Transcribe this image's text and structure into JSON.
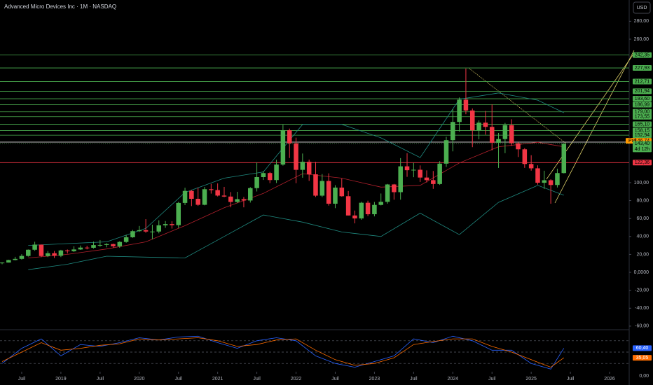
{
  "chart_data": {
    "type": "candlestick",
    "title": "Advanced Micro Devices Inc · 1M · NASDAQ",
    "currency": "USD",
    "up_color": "#4caf50",
    "down_color": "#f23645",
    "xlim": [
      "2018-04",
      "2026-04"
    ],
    "ylim": [
      -63.2,
      303.7
    ],
    "xticks": [
      {
        "value": "2018-07",
        "label": "Juil"
      },
      {
        "value": "2019-01",
        "label": "2019"
      },
      {
        "value": "2019-07",
        "label": "Juil"
      },
      {
        "value": "2020-01",
        "label": "2020"
      },
      {
        "value": "2020-07",
        "label": "Juil"
      },
      {
        "value": "2021-01",
        "label": "2021"
      },
      {
        "value": "2021-07",
        "label": "Juil"
      },
      {
        "value": "2022-01",
        "label": "2022"
      },
      {
        "value": "2022-07",
        "label": "Juil"
      },
      {
        "value": "2023-01",
        "label": "2023"
      },
      {
        "value": "2023-07",
        "label": "Juil"
      },
      {
        "value": "2024-01",
        "label": "2024"
      },
      {
        "value": "2024-07",
        "label": "Juil"
      },
      {
        "value": "2025-01",
        "label": "2025"
      },
      {
        "value": "2025-07",
        "label": "Juil"
      },
      {
        "value": "2026-01",
        "label": "2026"
      }
    ],
    "yticks": [
      {
        "value": 280,
        "label": "280,00"
      },
      {
        "value": 260,
        "label": "260,00"
      },
      {
        "value": 100,
        "label": "100,00"
      },
      {
        "value": 80,
        "label": "80,00"
      },
      {
        "value": 60,
        "label": "60,00"
      },
      {
        "value": 40,
        "label": "40,00"
      },
      {
        "value": 20,
        "label": "20,00"
      },
      {
        "value": 0,
        "label": "0,0000"
      },
      {
        "value": -20,
        "label": "-20,00"
      },
      {
        "value": -40,
        "label": "-40,00"
      },
      {
        "value": -60,
        "label": "-60,00"
      }
    ],
    "candles": [
      [
        "2018-04",
        10.1,
        11.3,
        9.0,
        10.9
      ],
      [
        "2018-05",
        10.9,
        14.0,
        10.9,
        13.7
      ],
      [
        "2018-06",
        13.7,
        17.3,
        13.3,
        15.0
      ],
      [
        "2018-07",
        15.0,
        20.2,
        14.2,
        18.3
      ],
      [
        "2018-08",
        18.3,
        25.5,
        17.5,
        25.2
      ],
      [
        "2018-09",
        25.2,
        34.1,
        24.0,
        30.9
      ],
      [
        "2018-10",
        30.9,
        31.0,
        16.9,
        18.2
      ],
      [
        "2018-11",
        18.2,
        23.8,
        17.0,
        21.3
      ],
      [
        "2018-12",
        21.3,
        23.8,
        16.0,
        18.5
      ],
      [
        "2019-01",
        18.5,
        25.1,
        17.0,
        24.4
      ],
      [
        "2019-02",
        24.4,
        25.5,
        21.0,
        23.5
      ],
      [
        "2019-03",
        23.5,
        29.0,
        22.7,
        25.5
      ],
      [
        "2019-04",
        25.5,
        29.9,
        25.0,
        27.6
      ],
      [
        "2019-05",
        27.6,
        29.5,
        25.6,
        27.4
      ],
      [
        "2019-06",
        27.4,
        34.3,
        26.5,
        30.4
      ],
      [
        "2019-07",
        30.4,
        36.0,
        28.5,
        30.5
      ],
      [
        "2019-08",
        30.5,
        32.5,
        27.9,
        31.5
      ],
      [
        "2019-09",
        31.5,
        32.0,
        27.5,
        29.0
      ],
      [
        "2019-10",
        29.0,
        34.7,
        27.4,
        33.9
      ],
      [
        "2019-11",
        33.9,
        41.8,
        33.0,
        39.1
      ],
      [
        "2019-12",
        39.1,
        47.3,
        38.5,
        45.9
      ],
      [
        "2020-01",
        45.9,
        51.7,
        45.1,
        47.0
      ],
      [
        "2020-02",
        47.0,
        59.3,
        44.1,
        45.5
      ],
      [
        "2020-03",
        45.5,
        53.1,
        36.8,
        45.5
      ],
      [
        "2020-04",
        45.5,
        58.0,
        43.5,
        52.4
      ],
      [
        "2020-05",
        52.4,
        57.2,
        49.6,
        53.8
      ],
      [
        "2020-06",
        53.8,
        56.9,
        48.8,
        52.6
      ],
      [
        "2020-07",
        52.6,
        78.6,
        49.5,
        77.4
      ],
      [
        "2020-08",
        77.4,
        94.3,
        75.0,
        90.8
      ],
      [
        "2020-09",
        90.8,
        92.0,
        73.9,
        82.0
      ],
      [
        "2020-10",
        82.0,
        94.3,
        74.1,
        75.3
      ],
      [
        "2020-11",
        75.3,
        95.2,
        74.7,
        92.7
      ],
      [
        "2020-12",
        92.7,
        98.6,
        87.8,
        91.7
      ],
      [
        "2021-01",
        91.7,
        99.2,
        84.6,
        85.6
      ],
      [
        "2021-02",
        85.6,
        95.3,
        83.8,
        84.5
      ],
      [
        "2021-03",
        84.5,
        89.5,
        72.5,
        78.5
      ],
      [
        "2021-04",
        78.5,
        89.8,
        77.4,
        81.6
      ],
      [
        "2021-05",
        81.6,
        84.0,
        72.5,
        80.1
      ],
      [
        "2021-06",
        80.1,
        95.0,
        77.8,
        93.9
      ],
      [
        "2021-07",
        93.9,
        122.5,
        90.2,
        106.2
      ],
      [
        "2021-08",
        106.2,
        112.8,
        103.0,
        110.7
      ],
      [
        "2021-09",
        110.7,
        111.9,
        99.5,
        102.9
      ],
      [
        "2021-10",
        102.9,
        125.6,
        99.6,
        120.2
      ],
      [
        "2021-11",
        120.2,
        164.5,
        119.0,
        158.4
      ],
      [
        "2021-12",
        158.4,
        160.3,
        127.5,
        143.9
      ],
      [
        "2022-01",
        143.9,
        150.2,
        99.4,
        114.3
      ],
      [
        "2022-02",
        114.3,
        132.5,
        105.5,
        123.3
      ],
      [
        "2022-03",
        123.3,
        125.7,
        102.0,
        109.3
      ],
      [
        "2022-04",
        109.3,
        123.3,
        84.0,
        85.5
      ],
      [
        "2022-05",
        85.5,
        109.6,
        84.0,
        101.9
      ],
      [
        "2022-06",
        101.9,
        110.4,
        74.4,
        76.5
      ],
      [
        "2022-07",
        76.5,
        97.2,
        71.6,
        94.5
      ],
      [
        "2022-08",
        94.5,
        104.6,
        84.4,
        84.9
      ],
      [
        "2022-09",
        84.9,
        90.7,
        63.4,
        63.4
      ],
      [
        "2022-10",
        63.4,
        68.9,
        54.6,
        60.1
      ],
      [
        "2022-11",
        60.1,
        78.7,
        58.6,
        77.6
      ],
      [
        "2022-12",
        77.6,
        79.9,
        62.8,
        64.8
      ],
      [
        "2023-01",
        64.8,
        78.5,
        62.4,
        75.2
      ],
      [
        "2023-02",
        75.2,
        87.9,
        74.6,
        78.6
      ],
      [
        "2023-03",
        78.6,
        98.6,
        76.5,
        98.0
      ],
      [
        "2023-04",
        98.0,
        98.6,
        81.0,
        89.4
      ],
      [
        "2023-05",
        89.4,
        127.4,
        81.0,
        118.2
      ],
      [
        "2023-06",
        118.2,
        132.8,
        106.5,
        113.9
      ],
      [
        "2023-07",
        113.9,
        122.1,
        106.1,
        114.4
      ],
      [
        "2023-08",
        114.4,
        119.2,
        100.8,
        105.7
      ],
      [
        "2023-09",
        105.7,
        113.7,
        100.2,
        102.8
      ],
      [
        "2023-10",
        102.8,
        113.0,
        93.1,
        98.5
      ],
      [
        "2023-11",
        98.5,
        124.0,
        97.5,
        121.2
      ],
      [
        "2023-12",
        121.2,
        151.1,
        117.6,
        147.4
      ],
      [
        "2024-01",
        147.4,
        181.9,
        134.9,
        167.7
      ],
      [
        "2024-02",
        167.7,
        195.0,
        157.0,
        192.5
      ],
      [
        "2024-03",
        192.5,
        227.3,
        176.3,
        180.5
      ],
      [
        "2024-04",
        180.5,
        182.7,
        139.6,
        158.4
      ],
      [
        "2024-05",
        158.4,
        169.4,
        148.3,
        166.9
      ],
      [
        "2024-06",
        166.9,
        180.0,
        153.5,
        162.2
      ],
      [
        "2024-07",
        162.2,
        187.3,
        136.1,
        144.5
      ],
      [
        "2024-08",
        144.5,
        155.4,
        116.4,
        148.6
      ],
      [
        "2024-09",
        148.6,
        166.6,
        132.9,
        164.1
      ],
      [
        "2024-10",
        164.1,
        170.7,
        141.0,
        144.0
      ],
      [
        "2024-11",
        144.0,
        145.0,
        128.6,
        137.2
      ],
      [
        "2024-12",
        137.2,
        138.5,
        116.5,
        120.8
      ],
      [
        "2025-01",
        120.8,
        130.6,
        113.4,
        116.0
      ],
      [
        "2025-02",
        116.0,
        119.3,
        97.8,
        99.9
      ],
      [
        "2025-03",
        99.9,
        113.3,
        93.0,
        102.7
      ],
      [
        "2025-04",
        102.7,
        103.8,
        76.5,
        97.4
      ],
      [
        "2025-05",
        97.4,
        115.6,
        94.6,
        110.7
      ],
      [
        "2025-06",
        110.7,
        144.0,
        110.3,
        143.4
      ]
    ],
    "bands": {
      "x": [
        "2018-08",
        "2019-02",
        "2019-08",
        "2020-02",
        "2020-08",
        "2021-02",
        "2021-08",
        "2022-02",
        "2022-08",
        "2023-02",
        "2023-08",
        "2024-02",
        "2024-08",
        "2025-02",
        "2025-06"
      ],
      "series": [
        {
          "color": "#1f8a80",
          "values": [
            30,
            32,
            34,
            49,
            89,
            105,
            112,
            165,
            165,
            150,
            128,
            193,
            200,
            192,
            178
          ]
        },
        {
          "color": "#b2202c",
          "values": [
            16,
            20,
            26,
            34,
            52,
            72,
            88,
            110,
            105,
            95,
            97,
            122,
            140,
            145,
            140
          ]
        },
        {
          "color": "#1f8a80",
          "values": [
            3,
            9,
            18,
            17,
            16,
            40,
            64,
            56,
            45,
            40,
            66,
            42,
            78,
            97,
            86
          ]
        }
      ]
    },
    "levels": [
      {
        "value": 242.35,
        "label": "242,35",
        "color": "#4caf50"
      },
      {
        "value": 227.93,
        "label": "227,93",
        "color": "#4caf50"
      },
      {
        "value": 212.71,
        "label": "212,71",
        "color": "#4caf50"
      },
      {
        "value": 201.94,
        "label": "201,94",
        "color": "#4caf50"
      },
      {
        "value": 193.6,
        "label": "193,60",
        "color": "#4caf50"
      },
      {
        "value": 186.99,
        "label": "186,99",
        "color": "#4caf50"
      },
      {
        "value": 179.0,
        "label": "179,00",
        "color": "#4caf50"
      },
      {
        "value": 173.55,
        "label": "173,55",
        "color": "#4caf50"
      },
      {
        "value": 165.1,
        "label": "165,10",
        "color": "#4caf50"
      },
      {
        "value": 158.15,
        "label": "158,15",
        "color": "#4caf50"
      },
      {
        "value": 152.94,
        "label": "152,94",
        "color": "#4caf50"
      },
      {
        "value": 145.22,
        "label": "145,22",
        "color": "#ffffff"
      },
      {
        "value": 122.36,
        "label": "122,36",
        "color": "#f23645"
      }
    ],
    "premarket": {
      "value": 146.74,
      "tag": "Pré",
      "label": "146,74",
      "color": "#ff9800"
    },
    "last": {
      "value": 143.4,
      "label": "143,40",
      "countdown": "4d 12h",
      "color": "#4caf50"
    },
    "oscillator": {
      "ylim": [
        0,
        100
      ],
      "yticks": [
        {
          "value": 0,
          "label": "0,00"
        }
      ],
      "levels": [
        80,
        50,
        20
      ],
      "x": [
        "2018-04",
        "2018-07",
        "2018-10",
        "2019-01",
        "2019-04",
        "2019-07",
        "2019-10",
        "2020-01",
        "2020-04",
        "2020-07",
        "2020-10",
        "2021-01",
        "2021-04",
        "2021-07",
        "2021-10",
        "2022-01",
        "2022-04",
        "2022-07",
        "2022-10",
        "2023-01",
        "2023-04",
        "2023-07",
        "2023-10",
        "2024-01",
        "2024-04",
        "2024-07",
        "2024-10",
        "2025-01",
        "2025-04",
        "2025-06"
      ],
      "series": [
        {
          "color": "#2962ff",
          "values": [
            20,
            60,
            85,
            40,
            70,
            65,
            75,
            88,
            82,
            90,
            92,
            75,
            60,
            80,
            88,
            80,
            40,
            20,
            10,
            25,
            40,
            85,
            75,
            92,
            80,
            55,
            55,
            20,
            5,
            60.4
          ],
          "last_label": "60,40"
        },
        {
          "color": "#ff6d00",
          "values": [
            25,
            50,
            75,
            55,
            60,
            68,
            72,
            85,
            82,
            85,
            88,
            80,
            65,
            70,
            82,
            85,
            55,
            30,
            15,
            20,
            35,
            70,
            78,
            85,
            85,
            65,
            50,
            30,
            10,
            35.05
          ],
          "last_label": "35,05"
        }
      ]
    }
  }
}
